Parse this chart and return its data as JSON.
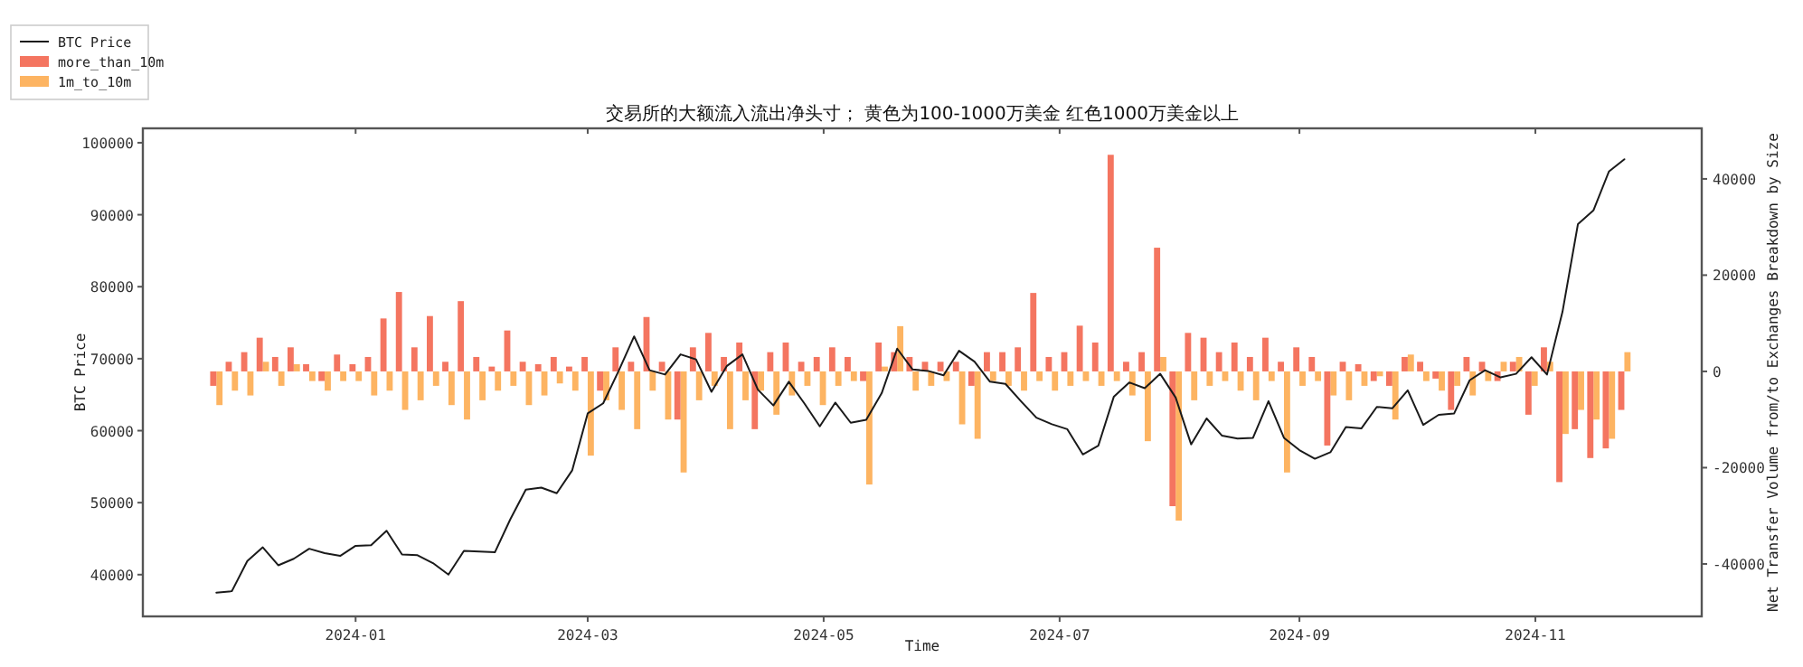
{
  "chart_data": {
    "type": "bar",
    "title": "交易所的大额流入流出净头寸； 黄色为100-1000万美金 红色1000万美金以上",
    "xlabel": "Time",
    "ylabel": "BTC Price",
    "y2label": "Net Transfer Volume from/to Exchanges Breakdown by Size",
    "legend": "top left",
    "xlim": [
      "2023-11-07",
      "2024-12-14"
    ],
    "xticks": [
      {
        "value": "2024-01-01",
        "label": "2024-01"
      },
      {
        "value": "2024-03-01",
        "label": "2024-03"
      },
      {
        "value": "2024-05-01",
        "label": "2024-05"
      },
      {
        "value": "2024-07-01",
        "label": "2024-07"
      },
      {
        "value": "2024-09-01",
        "label": "2024-09"
      },
      {
        "value": "2024-11-01",
        "label": "2024-11"
      }
    ],
    "ylim": [
      34200,
      102000
    ],
    "yticks": [
      40000,
      50000,
      60000,
      70000,
      80000,
      90000,
      100000
    ],
    "y2lim": [
      -50900,
      50500
    ],
    "y2ticks": [
      -40000,
      -20000,
      0,
      20000,
      40000
    ],
    "x": [
      "2023-11-26",
      "2023-11-30",
      "2023-12-04",
      "2023-12-08",
      "2023-12-12",
      "2023-12-16",
      "2023-12-20",
      "2023-12-24",
      "2023-12-28",
      "2024-01-01",
      "2024-01-05",
      "2024-01-09",
      "2024-01-13",
      "2024-01-17",
      "2024-01-21",
      "2024-01-25",
      "2024-01-29",
      "2024-02-02",
      "2024-02-06",
      "2024-02-10",
      "2024-02-14",
      "2024-02-18",
      "2024-02-22",
      "2024-02-26",
      "2024-03-01",
      "2024-03-05",
      "2024-03-09",
      "2024-03-13",
      "2024-03-17",
      "2024-03-21",
      "2024-03-25",
      "2024-03-29",
      "2024-04-02",
      "2024-04-06",
      "2024-04-10",
      "2024-04-14",
      "2024-04-18",
      "2024-04-22",
      "2024-04-26",
      "2024-04-30",
      "2024-05-04",
      "2024-05-08",
      "2024-05-12",
      "2024-05-16",
      "2024-05-20",
      "2024-05-24",
      "2024-05-28",
      "2024-06-01",
      "2024-06-05",
      "2024-06-09",
      "2024-06-13",
      "2024-06-17",
      "2024-06-21",
      "2024-06-25",
      "2024-06-29",
      "2024-07-03",
      "2024-07-07",
      "2024-07-11",
      "2024-07-15",
      "2024-07-19",
      "2024-07-23",
      "2024-07-27",
      "2024-07-31",
      "2024-08-04",
      "2024-08-08",
      "2024-08-12",
      "2024-08-16",
      "2024-08-20",
      "2024-08-24",
      "2024-08-28",
      "2024-09-01",
      "2024-09-05",
      "2024-09-09",
      "2024-09-13",
      "2024-09-17",
      "2024-09-21",
      "2024-09-25",
      "2024-09-29",
      "2024-10-03",
      "2024-10-07",
      "2024-10-11",
      "2024-10-15",
      "2024-10-19",
      "2024-10-23",
      "2024-10-27",
      "2024-10-31",
      "2024-11-04",
      "2024-11-08",
      "2024-11-12",
      "2024-11-16",
      "2024-11-20",
      "2024-11-24"
    ],
    "series": [
      {
        "name": "BTC Price",
        "type": "line",
        "color": "#1a1a1a",
        "values": [
          37500,
          37700,
          41900,
          43800,
          41300,
          42200,
          43600,
          43000,
          42600,
          44000,
          44100,
          46100,
          42800,
          42700,
          41600,
          40000,
          43300,
          43200,
          43100,
          47700,
          51800,
          52100,
          51300,
          54500,
          62400,
          63800,
          68300,
          73100,
          68400,
          67800,
          70600,
          69900,
          65400,
          69000,
          70600,
          65700,
          63500,
          66800,
          63800,
          60600,
          63900,
          61100,
          61500,
          65200,
          71400,
          68500,
          68300,
          67700,
          71100,
          69600,
          66800,
          66500,
          64100,
          61800,
          60900,
          60200,
          56700,
          57900,
          64700,
          66700,
          65900,
          67900,
          64600,
          58100,
          61700,
          59300,
          58900,
          59000,
          64100,
          59000,
          57300,
          56100,
          57000,
          60500,
          60300,
          63300,
          63100,
          65600,
          60800,
          62200,
          62400,
          67000,
          68400,
          67400,
          67900,
          70200,
          67800,
          76500,
          88700,
          90600,
          96000,
          97700
        ]
      },
      {
        "name": "more_than_10m",
        "color": "#f47560",
        "axis": "y2",
        "values": [
          -3000,
          2000,
          4000,
          7000,
          3000,
          5000,
          1500,
          -2000,
          3500,
          1500,
          3000,
          11000,
          16500,
          5000,
          11500,
          2000,
          14600,
          3000,
          1000,
          8500,
          2000,
          1500,
          3000,
          1000,
          3000,
          -4000,
          5000,
          2000,
          11300,
          2000,
          -10000,
          5000,
          8000,
          3000,
          6000,
          -12000,
          4000,
          6000,
          2000,
          3000,
          5000,
          3000,
          -2000,
          6000,
          4000,
          3000,
          2000,
          2000,
          2000,
          -3000,
          4000,
          4000,
          5000,
          16300,
          3000,
          4000,
          9500,
          6000,
          45000,
          2000,
          4000,
          25700,
          -28000,
          8000,
          7000,
          4000,
          6000,
          3000,
          7000,
          2000,
          5000,
          3000,
          -15400,
          2000,
          1500,
          -2000,
          -3000,
          3000,
          2000,
          -1500,
          -8000,
          3000,
          2000,
          -2000,
          2000,
          -9000,
          5000,
          -23000,
          -12000,
          -18000,
          -16000,
          -8000
        ]
      },
      {
        "name": "1m_to_10m",
        "color": "#fdb462",
        "axis": "y2",
        "values": [
          -7000,
          -4000,
          -5000,
          2000,
          -3000,
          1500,
          -2000,
          -4000,
          -2000,
          -2000,
          -5000,
          -4000,
          -8000,
          -6000,
          -3000,
          -7000,
          -10000,
          -6000,
          -4000,
          -3000,
          -7000,
          -5000,
          -2500,
          -4000,
          -17500,
          -6000,
          -8000,
          -12000,
          -4000,
          -10000,
          -21000,
          -6000,
          -3000,
          -12000,
          -6000,
          -4000,
          -9000,
          -5000,
          -3000,
          -7000,
          -3000,
          -2000,
          -23500,
          1000,
          9400,
          -4000,
          -3000,
          -2000,
          -11000,
          -14000,
          -2000,
          -3000,
          -4000,
          -2000,
          -4000,
          -3000,
          -2000,
          -3000,
          -2000,
          -5000,
          -14500,
          3000,
          -31000,
          -6000,
          -3000,
          -2000,
          -4000,
          -6000,
          -2000,
          -21000,
          -3000,
          -2000,
          -5000,
          -6000,
          -3000,
          -1000,
          -10000,
          3500,
          -2000,
          -4000,
          -3000,
          -5000,
          -2000,
          2000,
          3000,
          -3000,
          2000,
          -13000,
          -8000,
          -10000,
          -14000,
          4000
        ]
      }
    ]
  }
}
